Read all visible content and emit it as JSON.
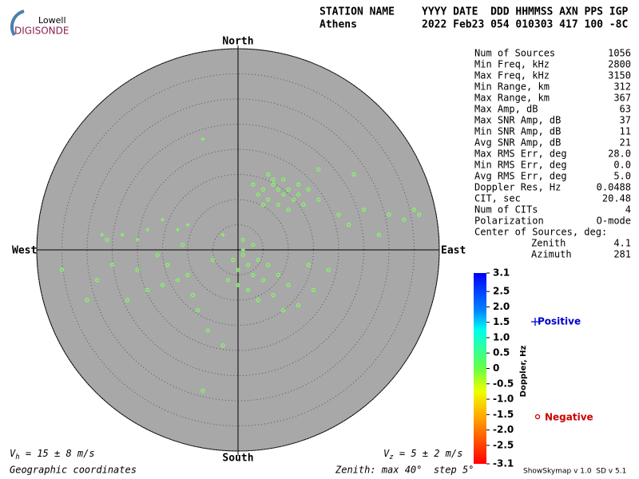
{
  "chart_data": {
    "type": "skymap",
    "logo": {
      "top": "Lowell",
      "bottom": "DIGISONDE"
    },
    "header": {
      "line1_left": "STATION NAME",
      "line1_right": "YYYY DATE  DDD HHMMSS AXN PPS IGP",
      "line2_left": "Athens",
      "line2_right": "2022 Feb23 054 010303 417 100 -8C"
    },
    "directions": {
      "north": "North",
      "south": "South",
      "east": "East",
      "west": "West"
    },
    "rlim": [
      0,
      40
    ],
    "rticks": [
      5,
      10,
      15,
      20,
      25,
      30,
      35,
      40
    ],
    "point_color": "#80ff60",
    "series": [
      {
        "name": "Negative",
        "color": "#cc0000",
        "marker": "o",
        "x": [
          5,
          7,
          9,
          10,
          6,
          8,
          11,
          12,
          4,
          7,
          9,
          13,
          5,
          10,
          14,
          16,
          3,
          8,
          12,
          6,
          1,
          2,
          3,
          4,
          0,
          5,
          2,
          6,
          8,
          3,
          1,
          -1,
          7,
          10,
          4,
          12,
          9,
          0,
          -2,
          14,
          -10,
          -12,
          -15,
          -18,
          -9,
          -14,
          -20,
          -25,
          -28,
          -22,
          -8,
          -6,
          -3,
          -7,
          -35,
          -30,
          -16,
          -5,
          -26,
          -11,
          20,
          25,
          30,
          33,
          35,
          22,
          28,
          18,
          15,
          23,
          16,
          36
        ],
        "y": [
          12,
          13,
          11,
          12,
          10,
          9,
          10,
          11,
          11,
          14,
          14,
          9,
          9,
          8,
          12,
          10,
          13,
          12,
          13,
          15,
          -1,
          -3,
          -5,
          -2,
          -4,
          -6,
          -8,
          -3,
          -5,
          1,
          2,
          -2,
          -9,
          -7,
          -10,
          -11,
          -12,
          -7,
          -6,
          -3,
          -5,
          -6,
          -7,
          -8,
          -9,
          -3,
          -4,
          -3,
          -6,
          -10,
          -12,
          -16,
          -19,
          -28,
          -4,
          -10,
          -1,
          -2,
          2,
          1,
          7,
          8,
          7,
          6,
          8,
          5,
          3,
          -4,
          -8,
          15,
          16,
          7
        ]
      },
      {
        "name": "Positive",
        "color": "#0000cc",
        "marker": "+",
        "x": [
          -7,
          -18,
          -27,
          -15,
          -10,
          -3,
          -20,
          1,
          -23,
          -12
        ],
        "y": [
          22,
          4,
          3,
          6,
          5,
          3,
          2,
          0,
          3,
          4
        ]
      }
    ],
    "stats": [
      [
        "Num of Sources",
        "1056"
      ],
      [
        "Min Freq, kHz",
        "2800"
      ],
      [
        "Max Freq, kHz",
        "3150"
      ],
      [
        "Min Range, km",
        "312"
      ],
      [
        "Max Range, km",
        "367"
      ],
      [
        "Max Amp, dB",
        "63"
      ],
      [
        "Max SNR Amp, dB",
        "37"
      ],
      [
        "Min SNR Amp, dB",
        "11"
      ],
      [
        "Avg SNR Amp, dB",
        "21"
      ],
      [
        "Max RMS Err, deg",
        "28.0"
      ],
      [
        "Min RMS Err, deg",
        "0.0"
      ],
      [
        "Avg RMS Err, deg",
        "5.0"
      ],
      [
        "Doppler Res, Hz",
        "0.0488"
      ],
      [
        "CIT, sec",
        "20.48"
      ],
      [
        "Num of CITs",
        "4"
      ],
      [
        "Polarization",
        "O-mode"
      ]
    ],
    "center_title": "Center of Sources, deg:",
    "center": [
      [
        "Zenith",
        "4.1"
      ],
      [
        "Azimuth",
        "281"
      ]
    ],
    "colorbar": {
      "title": "Doppler, Hz",
      "ylim": [
        -3.1,
        3.1
      ],
      "ticks": [
        3.1,
        {
          "value": 2.5,
          "label": "2.5"
        },
        {
          "value": 2,
          "label": "2.0"
        },
        1.5,
        {
          "value": 1,
          "label": "1.0"
        },
        0.5,
        0,
        -0.5,
        {
          "value": -1,
          "label": "-1.0"
        },
        -1.5,
        {
          "value": -2,
          "label": "-2.0"
        },
        -2.5,
        -3.1
      ]
    },
    "vh": {
      "symbol": "V",
      "subscript": "h",
      "text": " = 15 ± 8 m/s"
    },
    "vz": {
      "symbol": "V",
      "subscript": "z",
      "text": " = 5 ± 2 m/s"
    },
    "footer_left": "Geographic coordinates",
    "footer_mid": "Zenith: max 40°  step 5°",
    "footer_right": "ShowSkymap v 1.0  SD v 5.1"
  }
}
